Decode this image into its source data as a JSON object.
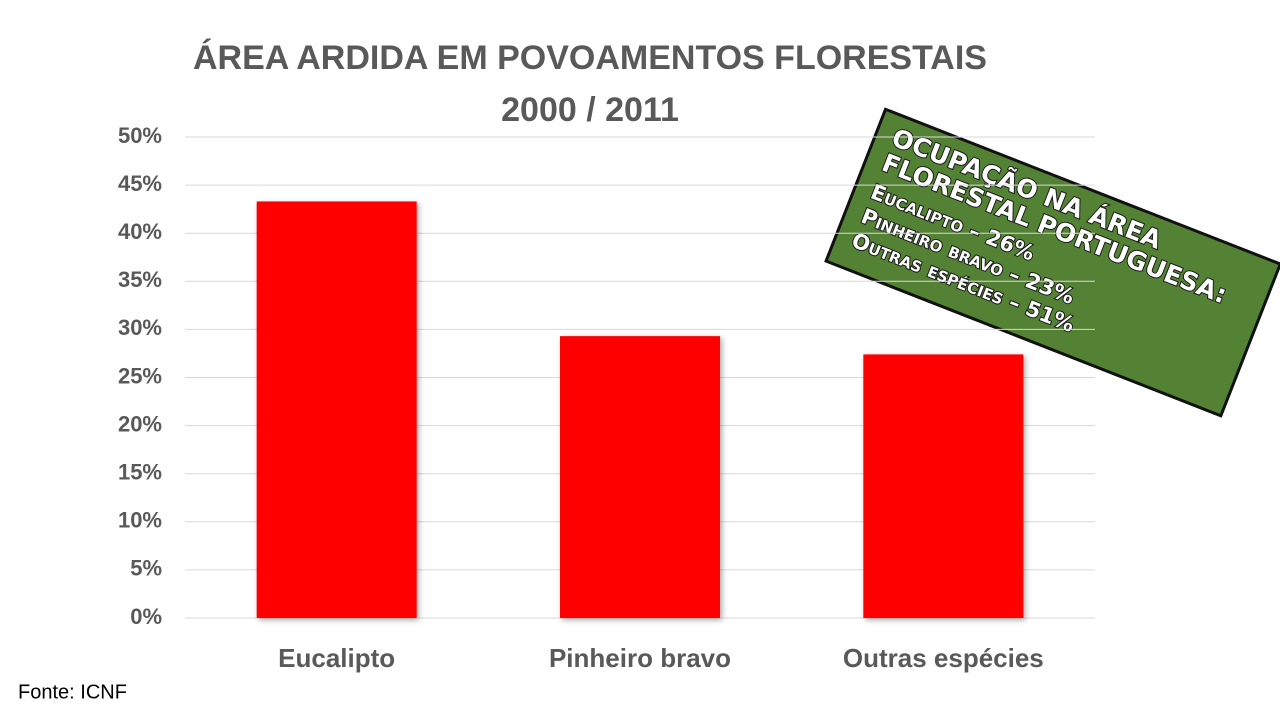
{
  "chart_data": {
    "type": "bar",
    "title": "ÁREA ARDIDA EM POVOAMENTOS FLORESTAIS",
    "subtitle": "2000 / 2011",
    "categories": [
      "Eucalipto",
      "Pinheiro bravo",
      "Outras espécies"
    ],
    "values": [
      43.3,
      29.3,
      27.4
    ],
    "color": "#ff0000",
    "ylim": [
      0,
      50
    ],
    "yticks": [
      {
        "value": 0,
        "label": "0%"
      },
      {
        "value": 5,
        "label": "5%"
      },
      {
        "value": 10,
        "label": "10%"
      },
      {
        "value": 15,
        "label": "15%"
      },
      {
        "value": 20,
        "label": "20%"
      },
      {
        "value": 25,
        "label": "25%"
      },
      {
        "value": 30,
        "label": "30%"
      },
      {
        "value": 35,
        "label": "35%"
      },
      {
        "value": 40,
        "label": "40%"
      },
      {
        "value": 45,
        "label": "45%"
      },
      {
        "value": 50,
        "label": "50%"
      }
    ],
    "grid": true,
    "source": "Fonte: ICNF",
    "annotation": {
      "heading": [
        "OCUPAÇÃO NA ÁREA",
        "FLORESTAL PORTUGUESA:"
      ],
      "items": [
        "Eucalipto – 26%",
        "Pinheiro bravo – 23%",
        "Outras espécies – 51%"
      ]
    }
  }
}
